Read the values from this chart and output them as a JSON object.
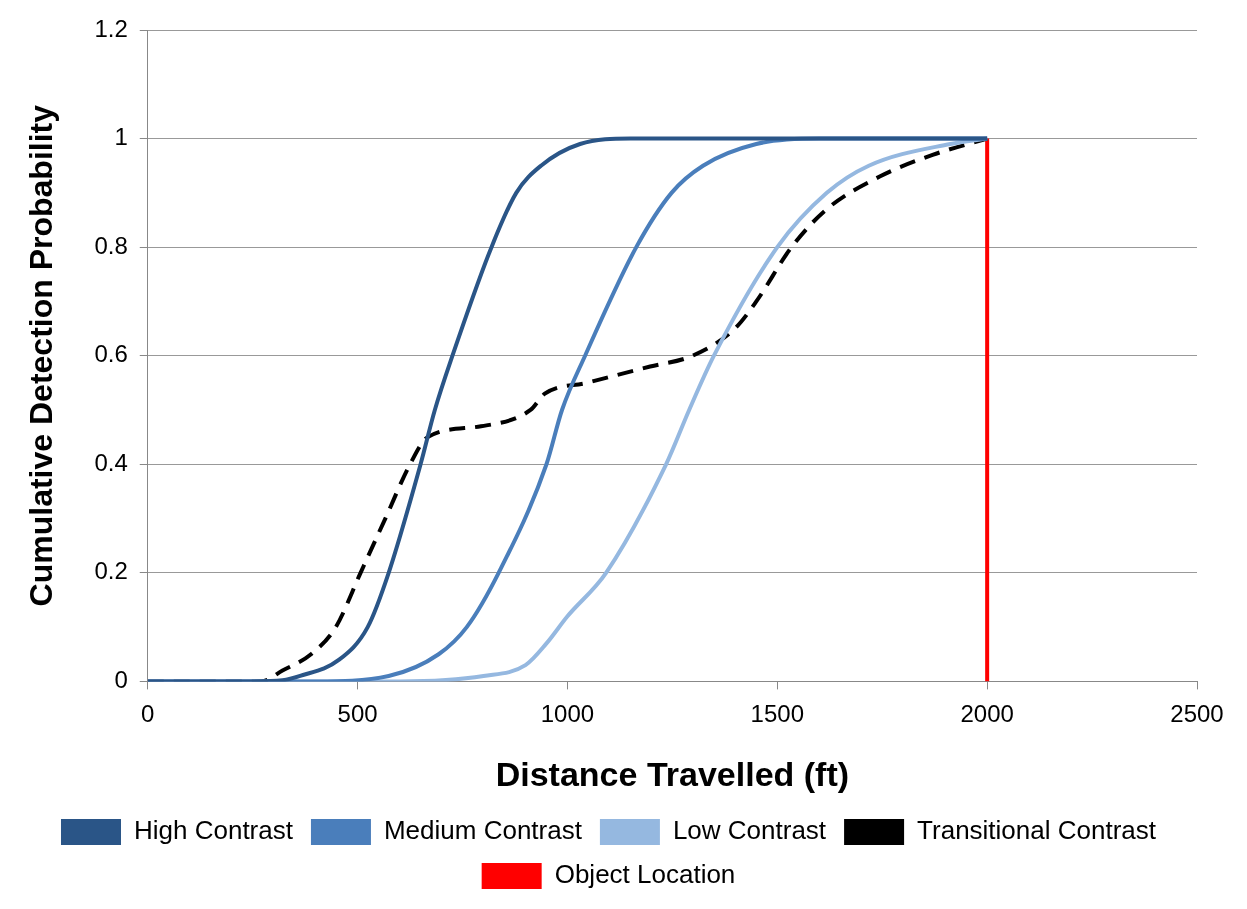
{
  "chart_data": {
    "type": "line",
    "xlabel": "Distance Travelled (ft)",
    "ylabel": "Cumulative Detection Probability",
    "xlim": [
      0,
      2500
    ],
    "xticks": [
      0,
      500,
      1000,
      1500,
      2000,
      2500
    ],
    "ylim": [
      0,
      1.2
    ],
    "yticks": [
      0,
      0.2,
      0.4,
      0.6,
      0.8,
      1,
      1.2
    ],
    "grid": "y",
    "legend": "bottom",
    "marker": "none",
    "series": [
      {
        "name": "High Contrast",
        "color": "#2a5587",
        "line_style": "solid",
        "x": [
          0,
          250,
          321,
          363,
          456,
          524,
          574,
          650,
          684,
          726,
          819,
          878,
          937,
          1030,
          1150,
          2000
        ],
        "values": [
          0,
          0,
          0.002,
          0.01,
          0.04,
          0.1,
          0.2,
          0.4,
          0.5,
          0.6,
          0.8,
          0.9,
          0.95,
          0.99,
          1,
          1
        ]
      },
      {
        "name": "Medium Contrast",
        "color": "#4a7ebb",
        "line_style": "solid",
        "x": [
          0,
          400,
          574,
          693,
          760,
          836,
          950,
          987,
          1042,
          1164,
          1248,
          1323,
          1450,
          1600,
          2000
        ],
        "values": [
          0,
          0,
          0.01,
          0.05,
          0.1,
          0.2,
          0.4,
          0.5,
          0.6,
          0.8,
          0.9,
          0.95,
          0.99,
          1,
          1
        ]
      },
      {
        "name": "Low Contrast",
        "color": "#95b8e0",
        "line_style": "solid",
        "x": [
          0,
          600,
          800,
          900,
          950,
          1000,
          1092,
          1235,
          1290,
          1349,
          1500,
          1618,
          1718,
          1912,
          2000
        ],
        "values": [
          0,
          0,
          0.01,
          0.03,
          0.07,
          0.12,
          0.2,
          0.4,
          0.5,
          0.6,
          0.8,
          0.9,
          0.95,
          0.99,
          1
        ]
      },
      {
        "name": "Transitional Contrast",
        "color": "#000000",
        "line_style": "dashed",
        "x": [
          0,
          270,
          321,
          389,
          448,
          507,
          566,
          625,
          667,
          794,
          912,
          946,
          1046,
          1197,
          1298,
          1399,
          1450,
          1534,
          1618,
          1744,
          1870,
          2000
        ],
        "values": [
          0,
          0,
          0.02,
          0.05,
          0.1,
          0.2,
          0.3,
          0.4,
          0.45,
          0.47,
          0.5,
          0.53,
          0.55,
          0.58,
          0.6,
          0.65,
          0.7,
          0.8,
          0.87,
          0.93,
          0.97,
          1
        ]
      },
      {
        "name": "Object Location",
        "color": "#ff0000",
        "line_style": "solid",
        "x": [
          2000,
          2000
        ],
        "values": [
          0,
          1
        ]
      }
    ]
  }
}
